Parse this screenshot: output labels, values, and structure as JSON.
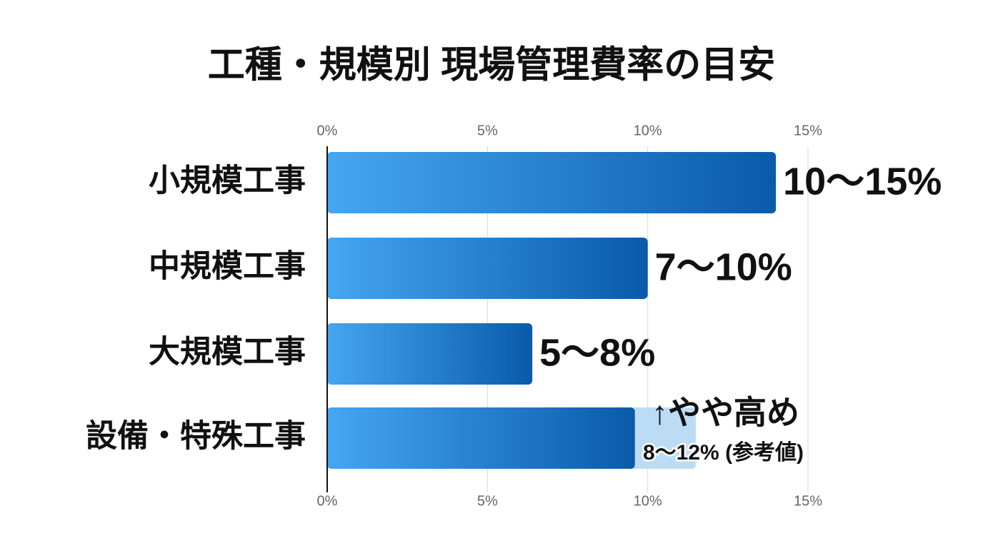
{
  "chart_data": {
    "type": "hbar",
    "title": "工種・規模別 現場管理費率の目安",
    "categories": [
      "小規模工事",
      "中規模工事",
      "大規模工事",
      "設備・特殊工事"
    ],
    "values": [
      14,
      10,
      6.4,
      9.6
    ],
    "range_labels": [
      "10〜15%",
      "7〜10%",
      "5〜8%",
      null
    ],
    "extended_values": [
      null,
      null,
      null,
      11.5
    ],
    "extended_color": "#bcdcf5",
    "annotations": [
      "↑やや高め",
      "8〜12% (参考値)"
    ],
    "color_start": "#45a6f2",
    "color_end": "#0a5aaa",
    "xlim": [
      0,
      15
    ],
    "xticks": [
      {
        "value": 0,
        "label": "0%"
      },
      {
        "value": 5,
        "label": "5%"
      },
      {
        "value": 10,
        "label": "10%"
      },
      {
        "value": 15,
        "label": "15%"
      }
    ],
    "grid": true
  }
}
